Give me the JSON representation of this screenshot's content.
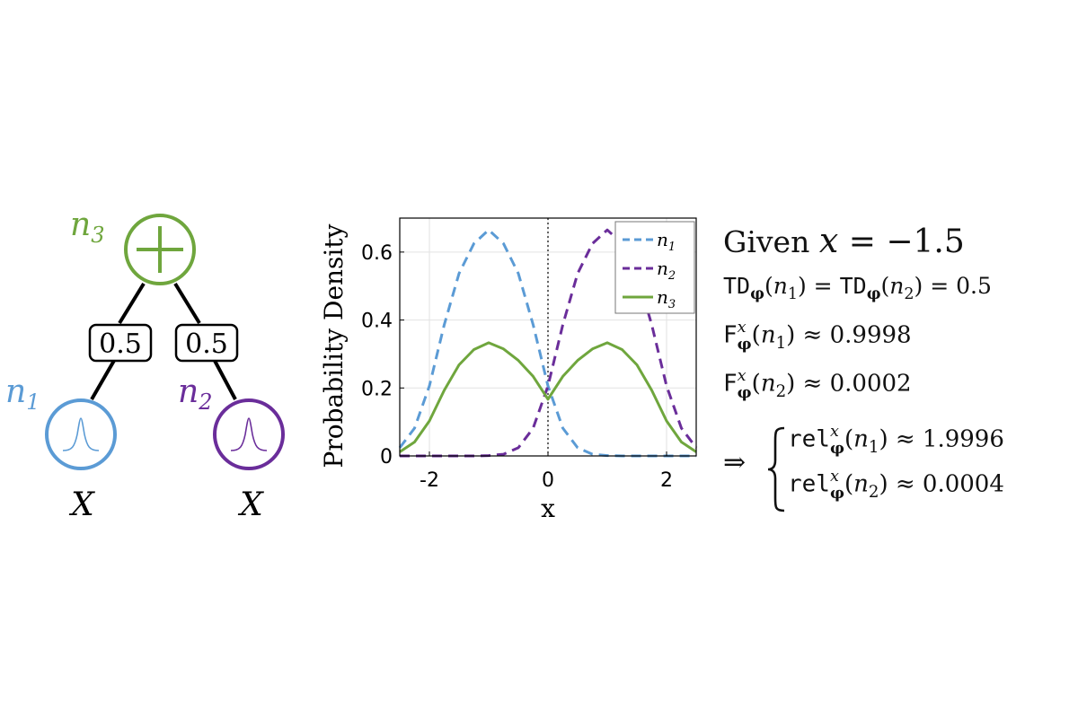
{
  "colors": {
    "n1": "#5b9bd5",
    "n2": "#6a2d9a",
    "n3": "#6fa63d",
    "grid": "#e2e2e2",
    "axis": "#000000"
  },
  "tree": {
    "n3_label": "n",
    "n3_sub": "3",
    "n1_label": "n",
    "n1_sub": "1",
    "n2_label": "n",
    "n2_sub": "2",
    "weight_left": "0.5",
    "weight_right": "0.5",
    "leaf_left_var": "X",
    "leaf_right_var": "X",
    "sum_icon": "plus-icon",
    "leaf_icon": "gaussian-curve-icon"
  },
  "chart_data": {
    "type": "line",
    "xlabel": "x",
    "ylabel": "Probability Density",
    "xlim": [
      -2.5,
      2.5
    ],
    "ylim": [
      0,
      0.7
    ],
    "xticks": [
      "-2",
      "0",
      "2"
    ],
    "yticks": [
      "0",
      "0.2",
      "0.4",
      "0.6"
    ],
    "xtick_values": [
      -2,
      0,
      2
    ],
    "ytick_values": [
      0,
      0.2,
      0.4,
      0.6
    ],
    "grid": true,
    "legend_position": "top-right",
    "vertical_reference_line_x": 0,
    "x": [
      -2.5,
      -2.25,
      -2.0,
      -1.75,
      -1.5,
      -1.25,
      -1.0,
      -0.75,
      -0.5,
      -0.25,
      0.0,
      0.25,
      0.5,
      0.75,
      1.0,
      1.25,
      1.5,
      1.75,
      2.0,
      2.25,
      2.5
    ],
    "series": [
      {
        "name": "n",
        "sub": "1",
        "style": "dashed",
        "values": [
          0.024,
          0.082,
          0.206,
          0.386,
          0.537,
          0.625,
          0.665,
          0.625,
          0.537,
          0.386,
          0.206,
          0.082,
          0.024,
          0.005,
          0.001,
          0.0,
          0.0,
          0.0,
          0.0,
          0.0,
          0.0
        ]
      },
      {
        "name": "n",
        "sub": "2",
        "style": "dashed",
        "values": [
          0.0,
          0.0,
          0.0,
          0.0,
          0.0,
          0.0,
          0.001,
          0.005,
          0.024,
          0.082,
          0.206,
          0.386,
          0.537,
          0.625,
          0.665,
          0.625,
          0.537,
          0.386,
          0.206,
          0.082,
          0.024
        ]
      },
      {
        "name": "n",
        "sub": "3",
        "style": "solid",
        "values": [
          0.012,
          0.041,
          0.103,
          0.193,
          0.268,
          0.313,
          0.333,
          0.315,
          0.281,
          0.234,
          0.167,
          0.234,
          0.281,
          0.315,
          0.333,
          0.313,
          0.268,
          0.193,
          0.103,
          0.041,
          0.012
        ]
      }
    ]
  },
  "equations": {
    "given_word": "Given",
    "given_var": "x",
    "given_eq": " = −1.5",
    "td_label": "TD",
    "phi": "φ",
    "n": "n",
    "one": "1",
    "two": "2",
    "x": "x",
    "td_tail": ") = 0.5",
    "f_label": "F",
    "f1_val": ") ≈ 0.9998",
    "f2_val": ") ≈ 0.0002",
    "implies": "⇒",
    "rel_label": "rel",
    "rel1_val": ") ≈ 1.9996",
    "rel2_val": ") ≈ 0.0004"
  }
}
